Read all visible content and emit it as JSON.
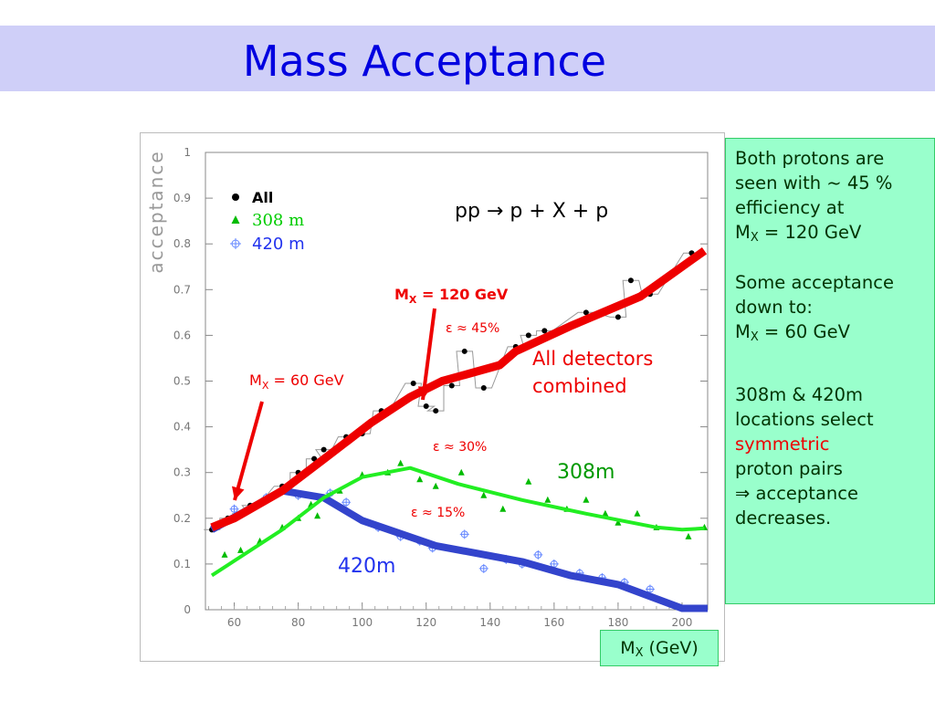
{
  "title": "Mass Acceptance",
  "chart_data": {
    "type": "line",
    "ylabel": "acceptance",
    "xlabel_prefix": "M",
    "xlabel_sub": "X",
    "xlabel_suffix": " (GeV)",
    "xlim": [
      51,
      208
    ],
    "ylim": [
      0,
      1
    ],
    "xticks": [
      60,
      80,
      100,
      120,
      140,
      160,
      180,
      200
    ],
    "yticks": [
      0,
      0.1,
      0.2,
      0.3,
      0.4,
      0.5,
      0.6,
      0.7,
      0.8,
      0.9,
      1
    ],
    "legend": [
      {
        "label": "All",
        "color": "#000000",
        "marker": "circle"
      },
      {
        "label": "308 m",
        "color": "#00cc00",
        "marker": "triangle"
      },
      {
        "label": "420 m",
        "color": "#3355ff",
        "marker": "cross"
      }
    ],
    "series": [
      {
        "name": "All",
        "color": "#ee0000",
        "line": [
          [
            53,
            0.18
          ],
          [
            60,
            0.2
          ],
          [
            75,
            0.26
          ],
          [
            90,
            0.34
          ],
          [
            103,
            0.41
          ],
          [
            115,
            0.465
          ],
          [
            125,
            0.5
          ],
          [
            143,
            0.535
          ],
          [
            148,
            0.565
          ],
          [
            165,
            0.62
          ],
          [
            187,
            0.685
          ],
          [
            207,
            0.785
          ]
        ],
        "points": [
          [
            53,
            0.175
          ],
          [
            58,
            0.2
          ],
          [
            62,
            0.21
          ],
          [
            65,
            0.228
          ],
          [
            75,
            0.27
          ],
          [
            80,
            0.3
          ],
          [
            85,
            0.33
          ],
          [
            88,
            0.35
          ],
          [
            95,
            0.378
          ],
          [
            100,
            0.385
          ],
          [
            106,
            0.435
          ],
          [
            116,
            0.495
          ],
          [
            120,
            0.445
          ],
          [
            123,
            0.435
          ],
          [
            128,
            0.49
          ],
          [
            132,
            0.565
          ],
          [
            138,
            0.485
          ],
          [
            148,
            0.575
          ],
          [
            152,
            0.6
          ],
          [
            157,
            0.61
          ],
          [
            170,
            0.65
          ],
          [
            180,
            0.64
          ],
          [
            184,
            0.72
          ],
          [
            190,
            0.69
          ],
          [
            203,
            0.78
          ]
        ]
      },
      {
        "name": "308 m",
        "color": "#22ee22",
        "line": [
          [
            53,
            0.075
          ],
          [
            75,
            0.175
          ],
          [
            88,
            0.245
          ],
          [
            100,
            0.29
          ],
          [
            115,
            0.31
          ],
          [
            130,
            0.275
          ],
          [
            150,
            0.24
          ],
          [
            170,
            0.21
          ],
          [
            192,
            0.18
          ],
          [
            200,
            0.175
          ],
          [
            207,
            0.178
          ]
        ],
        "points": [
          [
            57,
            0.12
          ],
          [
            62,
            0.13
          ],
          [
            68,
            0.15
          ],
          [
            75,
            0.18
          ],
          [
            80,
            0.2
          ],
          [
            84,
            0.23
          ],
          [
            86,
            0.205
          ],
          [
            93,
            0.26
          ],
          [
            100,
            0.295
          ],
          [
            108,
            0.3
          ],
          [
            112,
            0.32
          ],
          [
            118,
            0.285
          ],
          [
            123,
            0.27
          ],
          [
            131,
            0.3
          ],
          [
            138,
            0.25
          ],
          [
            144,
            0.22
          ],
          [
            152,
            0.28
          ],
          [
            158,
            0.24
          ],
          [
            164,
            0.22
          ],
          [
            170,
            0.24
          ],
          [
            176,
            0.21
          ],
          [
            180,
            0.19
          ],
          [
            186,
            0.21
          ],
          [
            192,
            0.18
          ],
          [
            202,
            0.16
          ],
          [
            207,
            0.18
          ]
        ]
      },
      {
        "name": "420 m",
        "color": "#3344cc",
        "line": [
          [
            53,
            0.175
          ],
          [
            75,
            0.26
          ],
          [
            88,
            0.245
          ],
          [
            100,
            0.195
          ],
          [
            123,
            0.14
          ],
          [
            150,
            0.105
          ],
          [
            165,
            0.075
          ],
          [
            180,
            0.055
          ],
          [
            200,
            0.003
          ],
          [
            208,
            0.003
          ]
        ],
        "points": [
          [
            60,
            0.22
          ],
          [
            70,
            0.245
          ],
          [
            80,
            0.25
          ],
          [
            90,
            0.255
          ],
          [
            95,
            0.235
          ],
          [
            105,
            0.18
          ],
          [
            112,
            0.16
          ],
          [
            118,
            0.15
          ],
          [
            122,
            0.135
          ],
          [
            132,
            0.165
          ],
          [
            138,
            0.09
          ],
          [
            145,
            0.11
          ],
          [
            150,
            0.1
          ],
          [
            155,
            0.12
          ],
          [
            160,
            0.1
          ],
          [
            168,
            0.08
          ],
          [
            175,
            0.07
          ],
          [
            182,
            0.06
          ],
          [
            190,
            0.045
          ]
        ]
      }
    ],
    "annotations": {
      "process": "pp → p + X + p",
      "m120_prefix": "M",
      "m120_sub": "X",
      "m120_value": " = 120 GeV",
      "eps45": "ε ≈ 45%",
      "eps30": "ε ≈ 30%",
      "eps15": "ε ≈ 15%",
      "m60_prefix": "M",
      "m60_sub": "X",
      "m60_value": " = 60 GeV",
      "all_detectors_1": "All detectors",
      "all_detectors_2": "combined",
      "label_308": "308m",
      "label_420": "420m"
    }
  },
  "side_panel": {
    "p1_line1": "Both protons are",
    "p1_line2": "seen with ~ 45 %",
    "p1_line3": "efficiency at",
    "p1_line4_prefix": "M",
    "p1_line4_sub": "X",
    "p1_line4_value": " = 120 GeV",
    "p2_line1": "Some acceptance",
    "p2_line2": "down to:",
    "p2_line3_prefix": "M",
    "p2_line3_sub": "X",
    "p2_line3_value": " = 60 GeV",
    "p3_line1": "308m & 420m",
    "p3_line2": "locations select",
    "p3_line3": "symmetric",
    "p3_line4": "proton pairs",
    "p3_line5": "⇒ acceptance",
    "p3_line6": "decreases."
  }
}
